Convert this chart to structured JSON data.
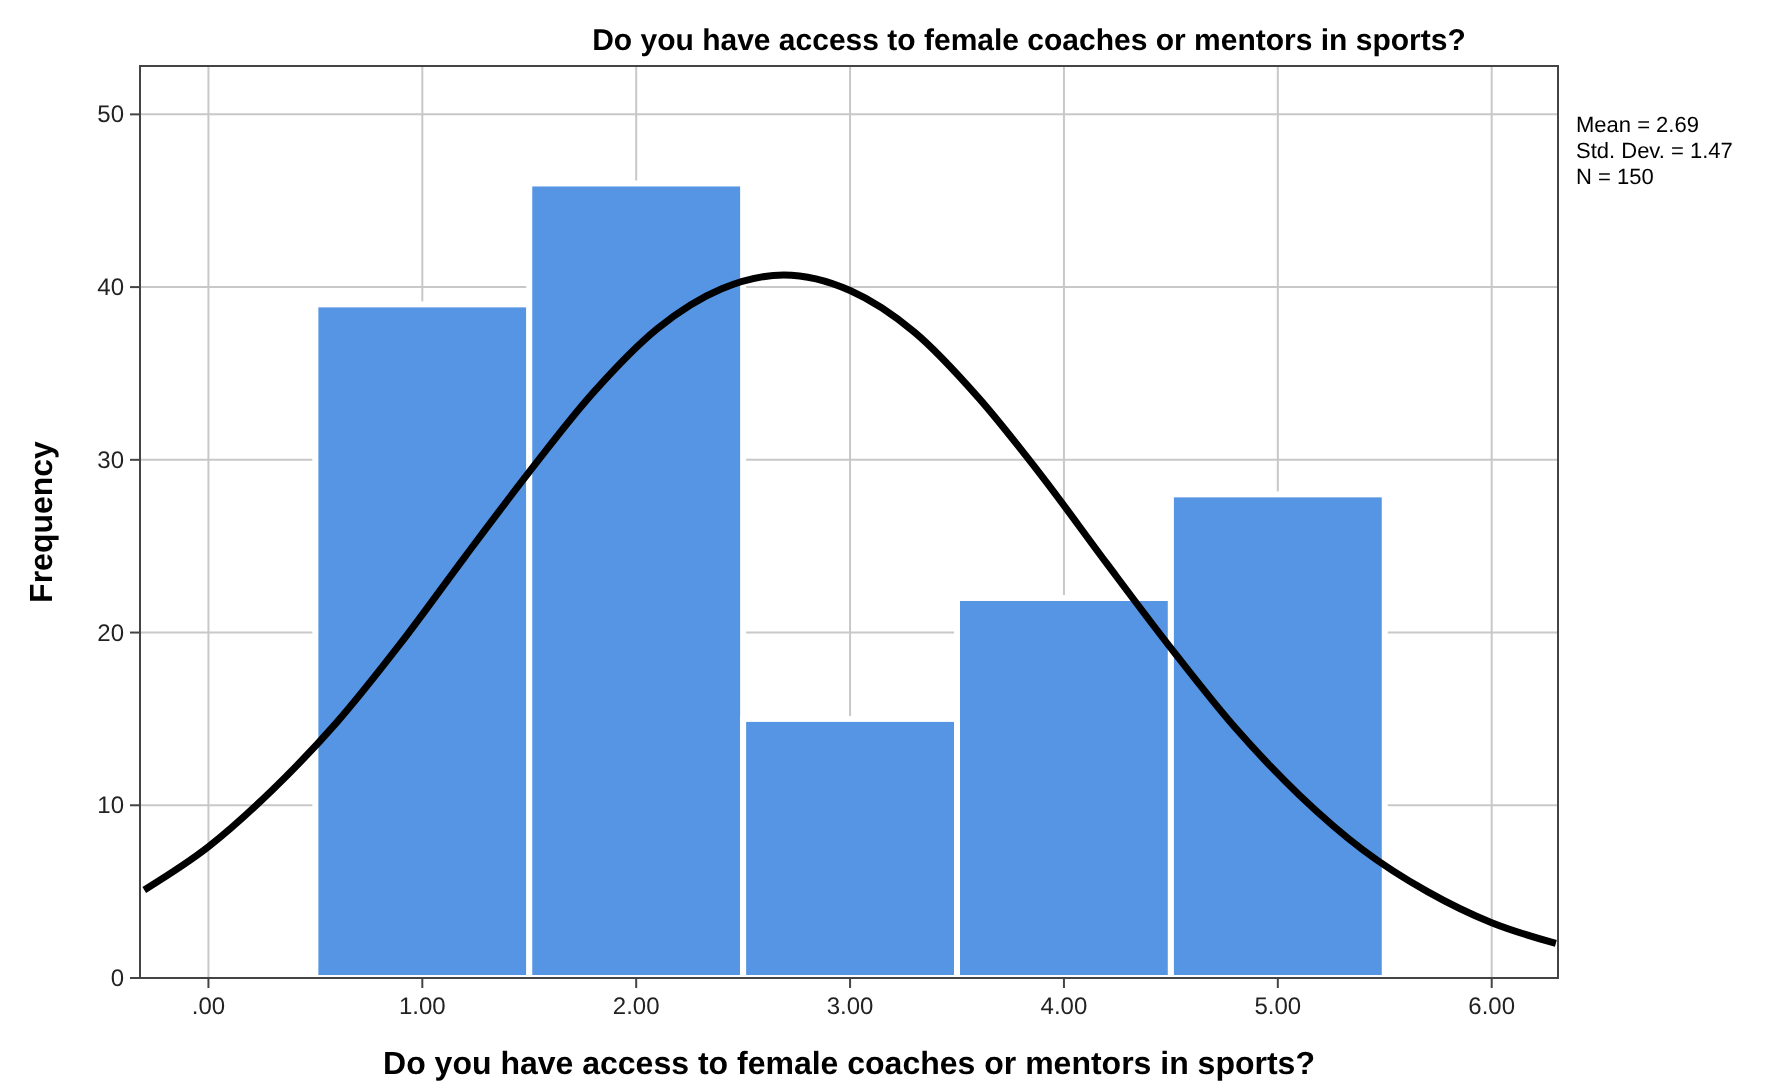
{
  "chart_data": {
    "type": "histogram",
    "title": "Do you have access to female coaches or mentors in sports?",
    "xlabel": "Do you have access to female coaches or mentors in sports?",
    "ylabel": "Frequency",
    "annotations": [
      "Mean = 2.69",
      "Std. Dev. = 1.47",
      "N = 150"
    ],
    "bins": [
      0.5,
      1.5,
      2.5,
      3.5,
      4.5,
      5.5
    ],
    "series": [
      {
        "color": "#5595e3",
        "values": [
          39,
          46,
          15,
          22,
          28
        ]
      },
      {
        "type": "line",
        "color": "#000000",
        "x": [
          -0.3,
          0,
          0.3,
          0.6,
          0.9,
          1.2,
          1.5,
          1.8,
          2.1,
          2.4,
          2.69,
          3.0,
          3.3,
          3.6,
          3.9,
          4.2,
          4.5,
          4.8,
          5.1,
          5.4,
          5.7,
          6.0,
          6.3
        ],
        "values": [
          5.1,
          7.6,
          10.9,
          14.8,
          19.4,
          24.4,
          29.3,
          33.9,
          37.6,
          39.9,
          40.7,
          39.8,
          37.4,
          33.6,
          29.0,
          24.0,
          19.1,
          14.5,
          10.6,
          7.4,
          5.0,
          3.2,
          2.0
        ]
      }
    ],
    "xlim": [
      -0.32,
      6.31
    ],
    "ylim": [
      0,
      52.8
    ],
    "xticks": [
      {
        "value": 0,
        "label": ".00"
      },
      {
        "value": 1,
        "label": "1.00"
      },
      {
        "value": 2,
        "label": "2.00"
      },
      {
        "value": 3,
        "label": "3.00"
      },
      {
        "value": 4,
        "label": "4.00"
      },
      {
        "value": 5,
        "label": "5.00"
      },
      {
        "value": 6,
        "label": "6.00"
      }
    ],
    "yticks": [
      0,
      10,
      20,
      30,
      40,
      50
    ],
    "grid": true,
    "line_style": "solid",
    "marker": "none"
  }
}
